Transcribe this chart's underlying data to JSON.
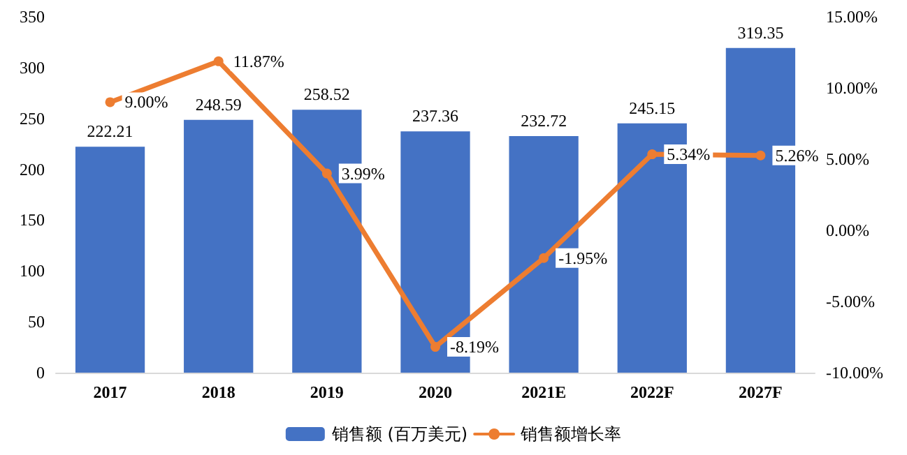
{
  "chart_data": {
    "type": "bar",
    "categories": [
      "2017",
      "2018",
      "2019",
      "2020",
      "2021E",
      "2022F",
      "2027F"
    ],
    "series": [
      {
        "name": "销售额 (百万美元)",
        "color": "#4472c4",
        "values": [
          222.21,
          248.59,
          258.52,
          237.36,
          232.72,
          245.15,
          319.35
        ],
        "value_labels": [
          "222.21",
          "248.59",
          "258.52",
          "237.36",
          "232.72",
          "245.15",
          "319.35"
        ]
      },
      {
        "name": "销售额增长率",
        "type": "line",
        "axis": "y2",
        "color": "#ed7d31",
        "values": [
          9.0,
          11.87,
          3.99,
          -8.19,
          -1.95,
          5.34,
          5.26
        ],
        "value_labels": [
          "9.00%",
          "11.87%",
          "3.99%",
          "-8.19%",
          "-1.95%",
          "5.34%",
          "5.26%"
        ]
      }
    ],
    "ylim": [
      0,
      350
    ],
    "yticks": [
      0,
      50,
      100,
      150,
      200,
      250,
      300,
      350
    ],
    "y2lim": [
      -10,
      15
    ],
    "y2ticks": [
      {
        "value": -10,
        "label": "-10.00%"
      },
      {
        "value": -5,
        "label": "-5.00%"
      },
      {
        "value": 0,
        "label": "0.00%"
      },
      {
        "value": 5,
        "label": "5.00%"
      },
      {
        "value": 10,
        "label": "10.00%"
      },
      {
        "value": 15,
        "label": "15.00%"
      }
    ],
    "grid": false,
    "legend": "bottom",
    "marker": "circle",
    "line_style": "solid"
  }
}
